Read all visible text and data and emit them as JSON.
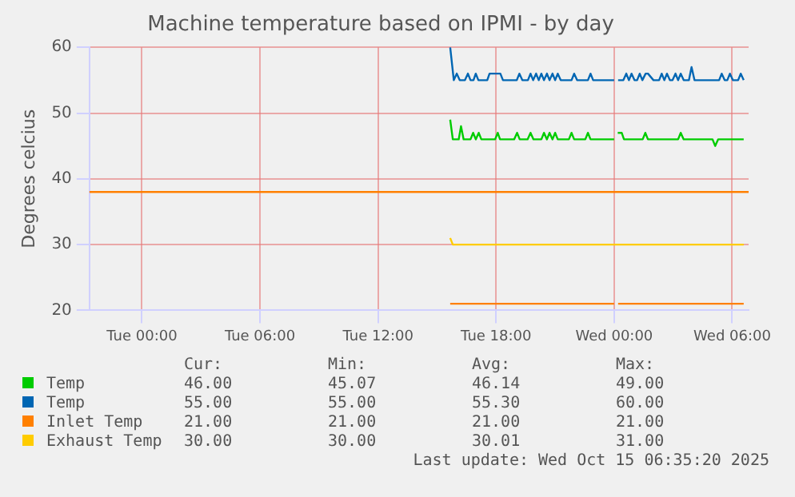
{
  "chart_data": {
    "type": "line",
    "title": "Machine temperature based on IPMI - by day",
    "ylabel": "Degrees celcius",
    "xlim": [
      "2025-10-13T21:20",
      "2025-10-15T06:50"
    ],
    "xticks": [
      {
        "value": "2025-10-14T00:00",
        "label": "Tue 00:00"
      },
      {
        "value": "2025-10-14T06:00",
        "label": "Tue 06:00"
      },
      {
        "value": "2025-10-14T12:00",
        "label": "Tue 12:00"
      },
      {
        "value": "2025-10-14T18:00",
        "label": "Tue 18:00"
      },
      {
        "value": "2025-10-15T00:00",
        "label": "Wed 00:00"
      },
      {
        "value": "2025-10-15T06:00",
        "label": "Wed 06:00"
      }
    ],
    "ylim": [
      20,
      60
    ],
    "yticks": [
      20,
      30,
      40,
      50,
      60
    ],
    "grid": true,
    "legend": "bottom",
    "marker": "none",
    "line_style": "solid",
    "ref_lines": [
      {
        "axis": "y",
        "value": 38,
        "color": "#ff8000"
      }
    ],
    "series": [
      {
        "name": "Temp",
        "color": "#00cc00",
        "x": [
          "2025-10-14T15:40",
          "2025-10-14T15:48",
          "2025-10-14T16:06",
          "2025-10-14T16:13",
          "2025-10-14T16:21",
          "2025-10-14T16:42",
          "2025-10-14T16:50",
          "2025-10-14T16:58",
          "2025-10-14T17:07",
          "2025-10-14T17:15",
          "2025-10-14T17:57",
          "2025-10-14T18:05",
          "2025-10-14T18:12",
          "2025-10-14T18:55",
          "2025-10-14T19:04",
          "2025-10-14T19:12",
          "2025-10-14T19:36",
          "2025-10-14T19:45",
          "2025-10-14T19:54",
          "2025-10-14T20:18",
          "2025-10-14T20:26",
          "2025-10-14T20:35",
          "2025-10-14T20:43",
          "2025-10-14T20:52",
          "2025-10-14T21:00",
          "2025-10-14T21:08",
          "2025-10-14T21:42",
          "2025-10-14T21:50",
          "2025-10-14T21:58",
          "2025-10-14T22:32",
          "2025-10-14T22:40",
          "2025-10-14T22:48",
          "2025-10-15T00:00",
          "2025-10-15T00:03",
          "2025-10-15T00:11",
          "2025-10-15T00:23",
          "2025-10-15T00:30",
          "2025-10-15T01:27",
          "2025-10-15T01:35",
          "2025-10-15T01:43",
          "2025-10-15T03:15",
          "2025-10-15T03:23",
          "2025-10-15T03:32",
          "2025-10-15T05:00",
          "2025-10-15T05:08",
          "2025-10-15T05:17",
          "2025-10-15T06:35"
        ],
        "values": [
          49,
          46,
          46,
          48,
          46,
          46,
          47,
          46,
          47,
          46,
          46,
          47,
          46,
          46,
          47,
          46,
          46,
          47,
          46,
          46,
          47,
          46,
          47,
          46,
          47,
          46,
          46,
          47,
          46,
          46,
          47,
          46,
          46,
          null,
          47,
          47,
          46,
          46,
          47,
          46,
          46,
          47,
          46,
          46,
          45,
          46,
          46
        ]
      },
      {
        "name": "Temp",
        "color": "#0066b3",
        "x": [
          "2025-10-14T15:40",
          "2025-10-14T15:51",
          "2025-10-14T16:00",
          "2025-10-14T16:09",
          "2025-10-14T16:25",
          "2025-10-14T16:34",
          "2025-10-14T16:42",
          "2025-10-14T16:51",
          "2025-10-14T16:58",
          "2025-10-14T17:06",
          "2025-10-14T17:33",
          "2025-10-14T17:40",
          "2025-10-14T18:13",
          "2025-10-14T18:21",
          "2025-10-14T19:03",
          "2025-10-14T19:11",
          "2025-10-14T19:20",
          "2025-10-14T19:37",
          "2025-10-14T19:45",
          "2025-10-14T19:53",
          "2025-10-14T20:02",
          "2025-10-14T20:10",
          "2025-10-14T20:18",
          "2025-10-14T20:26",
          "2025-10-14T20:35",
          "2025-10-14T20:43",
          "2025-10-14T20:52",
          "2025-10-14T21:00",
          "2025-10-14T21:08",
          "2025-10-14T21:17",
          "2025-10-14T21:50",
          "2025-10-14T21:58",
          "2025-10-14T22:07",
          "2025-10-14T22:40",
          "2025-10-14T22:48",
          "2025-10-14T22:56",
          "2025-10-15T00:00",
          "2025-10-15T00:03",
          "2025-10-15T00:12",
          "2025-10-15T00:28",
          "2025-10-15T00:37",
          "2025-10-15T00:45",
          "2025-10-15T00:53",
          "2025-10-15T01:02",
          "2025-10-15T01:10",
          "2025-10-15T01:18",
          "2025-10-15T01:26",
          "2025-10-15T01:36",
          "2025-10-15T01:43",
          "2025-10-15T02:00",
          "2025-10-15T02:17",
          "2025-10-15T02:25",
          "2025-10-15T02:33",
          "2025-10-15T02:41",
          "2025-10-15T02:50",
          "2025-10-15T02:58",
          "2025-10-15T03:07",
          "2025-10-15T03:15",
          "2025-10-15T03:23",
          "2025-10-15T03:32",
          "2025-10-15T03:48",
          "2025-10-15T03:56",
          "2025-10-15T04:05",
          "2025-10-15T05:20",
          "2025-10-15T05:28",
          "2025-10-15T05:37",
          "2025-10-15T05:45",
          "2025-10-15T05:53",
          "2025-10-15T06:02",
          "2025-10-15T06:18",
          "2025-10-15T06:26",
          "2025-10-15T06:35"
        ],
        "values": [
          60,
          55,
          56,
          55,
          55,
          56,
          55,
          55,
          56,
          55,
          55,
          56,
          56,
          55,
          55,
          56,
          55,
          55,
          56,
          55,
          56,
          55,
          56,
          55,
          56,
          55,
          56,
          55,
          56,
          55,
          55,
          56,
          55,
          55,
          56,
          55,
          55,
          null,
          55,
          55,
          56,
          55,
          56,
          55,
          55,
          56,
          55,
          56,
          56,
          55,
          55,
          56,
          55,
          56,
          55,
          55,
          56,
          55,
          56,
          55,
          55,
          57,
          55,
          55,
          56,
          55,
          55,
          56,
          55,
          55,
          56,
          55
        ]
      },
      {
        "name": "Inlet Temp",
        "color": "#ff8000",
        "x": [
          "2025-10-14T15:40",
          "2025-10-15T00:00",
          "2025-10-15T00:03",
          "2025-10-15T00:12",
          "2025-10-15T06:35"
        ],
        "values": [
          21,
          21,
          null,
          21,
          21
        ]
      },
      {
        "name": "Exhaust Temp",
        "color": "#ffcc00",
        "x": [
          "2025-10-14T15:40",
          "2025-10-14T15:48",
          "2025-10-15T06:35"
        ],
        "values": [
          31,
          30,
          30
        ]
      }
    ],
    "annotations": [
      "Cur:",
      "Min:",
      "Avg:",
      "Max:",
      "46.00",
      "45.07",
      "46.14",
      "49.00",
      "55.00",
      "55.00",
      "55.30",
      "60.00",
      "21.00",
      "21.00",
      "21.00",
      "21.00",
      "30.00",
      "30.00",
      "30.01",
      "31.00",
      "Last update: Wed Oct 15 06:35:20 2025"
    ]
  }
}
